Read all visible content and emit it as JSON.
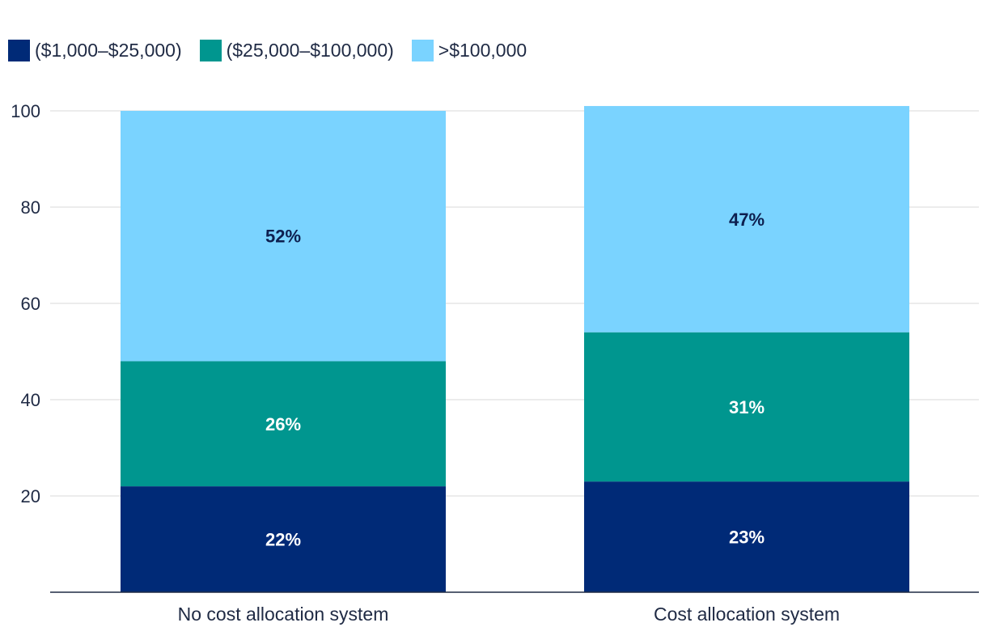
{
  "chart_data": {
    "type": "bar",
    "stacked": true,
    "categories": [
      "No cost allocation system",
      "Cost allocation system"
    ],
    "series": [
      {
        "name": "($1,000–$25,000)",
        "values": [
          22,
          23
        ],
        "labels": [
          "22%",
          "23%"
        ],
        "color": "#002a77",
        "label_color": "#ffffff"
      },
      {
        "name": "($25,000–$100,000)",
        "values": [
          26,
          31
        ],
        "labels": [
          "26%",
          "31%"
        ],
        "color": "#00968f",
        "label_color": "#ffffff"
      },
      {
        "name": ">$100,000",
        "values": [
          52,
          47
        ],
        "labels": [
          "52%",
          "47%"
        ],
        "color": "#7ad3ff",
        "label_color": "#0d1f4f"
      }
    ],
    "yticks": [
      20,
      40,
      60,
      80,
      100
    ],
    "ylim": [
      0,
      100
    ],
    "grid": true,
    "legend_position": "top-left",
    "title": "",
    "xlabel": "",
    "ylabel": ""
  }
}
